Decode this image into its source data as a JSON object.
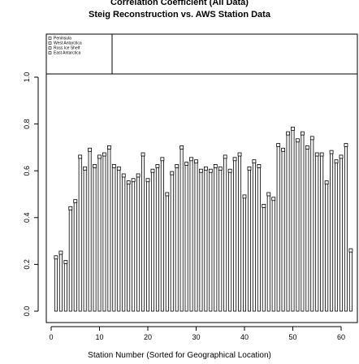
{
  "chart_data": {
    "type": "bar",
    "title": "Correlation Coefficient (All Data)",
    "subtitle": "Steig Reconstruction vs. AWS Station Data",
    "x_label": "Station Number (Sorted for Geographical Location)",
    "legend": [
      "Peninsula",
      "West Antarctica",
      "Ross Ice Shelf",
      "East Antarctica"
    ],
    "color": "#000000",
    "x": [
      1,
      2,
      3,
      4,
      5,
      6,
      7,
      8,
      9,
      10,
      11,
      12,
      13,
      14,
      15,
      16,
      17,
      18,
      19,
      20,
      21,
      22,
      23,
      24,
      25,
      26,
      27,
      28,
      29,
      30,
      31,
      32,
      33,
      34,
      35,
      36,
      37,
      38,
      39,
      40,
      41,
      42,
      43,
      44,
      45,
      46,
      47,
      48,
      49,
      50,
      51,
      52,
      53,
      54,
      55,
      56,
      57,
      58,
      59,
      60,
      61,
      62
    ],
    "values": [
      0.23,
      0.25,
      0.21,
      0.44,
      0.47,
      0.66,
      0.61,
      0.69,
      0.62,
      0.66,
      0.67,
      0.7,
      0.62,
      0.61,
      0.58,
      0.55,
      0.56,
      0.58,
      0.67,
      0.56,
      0.6,
      0.62,
      0.65,
      0.5,
      0.59,
      0.62,
      0.7,
      0.63,
      0.65,
      0.64,
      0.6,
      0.61,
      0.6,
      0.62,
      0.61,
      0.66,
      0.6,
      0.65,
      0.67,
      0.49,
      0.61,
      0.64,
      0.62,
      0.45,
      0.5,
      0.48,
      0.71,
      0.69,
      0.76,
      0.78,
      0.73,
      0.76,
      0.7,
      0.74,
      0.67,
      0.67,
      0.55,
      0.68,
      0.64,
      0.66,
      0.71,
      0.26
    ],
    "xlim": [
      0,
      60
    ],
    "xticks": [
      0,
      10,
      20,
      30,
      40,
      50,
      60
    ],
    "ylim": [
      0,
      1
    ],
    "yticks": [
      {
        "value": 0,
        "label": "0.0"
      },
      0.2,
      0.4,
      0.6,
      0.8,
      {
        "value": 1,
        "label": "1.0"
      }
    ]
  }
}
